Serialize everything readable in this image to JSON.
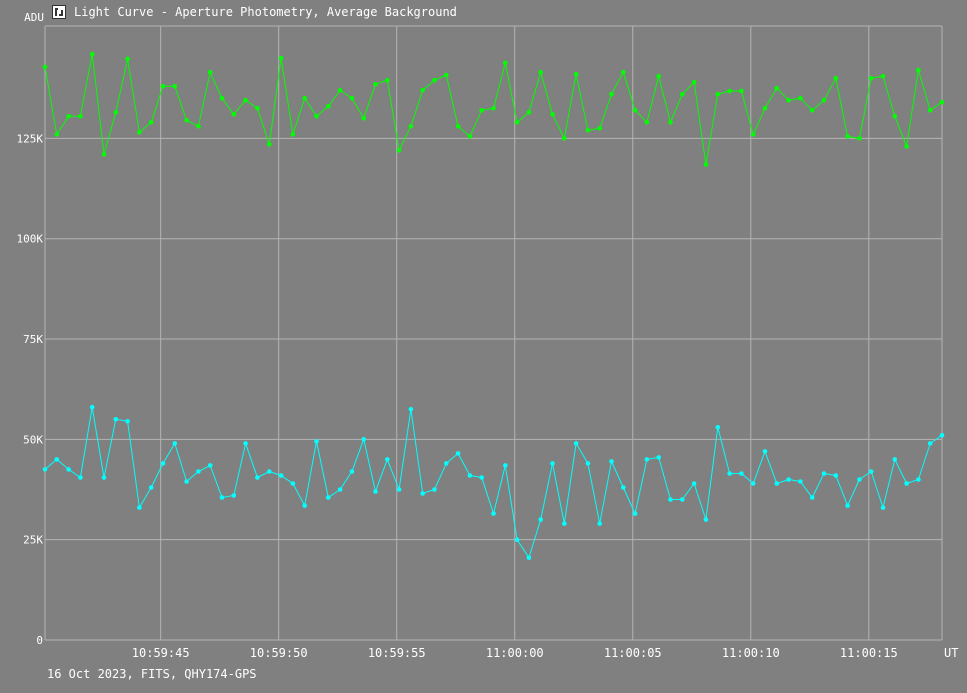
{
  "window": {
    "title": "Light Curve - Aperture Photometry, Average Background",
    "icon": "light-curve-app-icon"
  },
  "footer": {
    "text": "16 Oct 2023, FITS, QHY174-GPS"
  },
  "colors": {
    "background": "#808080",
    "grid": "#b4b4b4",
    "text": "#ffffff",
    "series_green": "#00ff00",
    "series_cyan": "#00ffff"
  },
  "chart_data": {
    "type": "line",
    "title": "",
    "ylabel": "ADU",
    "xlabel": "UT",
    "ylim": [
      0,
      153000
    ],
    "xlim": [
      -3.9,
      34.1
    ],
    "y_ticks": [
      0,
      25000,
      50000,
      75000,
      100000,
      125000
    ],
    "y_tick_labels": [
      "0",
      "25K",
      "50K",
      "75K",
      "100K",
      "125K"
    ],
    "x_ticks": [
      1,
      6,
      11,
      16,
      21,
      26,
      31
    ],
    "x_tick_labels": [
      "10:59:45",
      "10:59:50",
      "10:59:55",
      "11:00:00",
      "11:00:05",
      "11:00:10",
      "11:00:15"
    ],
    "x_unit_note": "seconds after 10:59:44",
    "grid": true,
    "series": [
      {
        "color": "#00ff00",
        "x_start": -3.9,
        "x_step": 0.5,
        "values": [
          142800,
          126000,
          130500,
          130500,
          146000,
          121000,
          131500,
          144800,
          126500,
          129000,
          138000,
          138000,
          129500,
          128000,
          141500,
          135000,
          131000,
          134500,
          132500,
          123500,
          145000,
          126000,
          135000,
          130500,
          133000,
          137000,
          135000,
          130000,
          138500,
          139500,
          122000,
          128000,
          137000,
          139500,
          140800,
          128000,
          125500,
          132000,
          132500,
          143800,
          129000,
          131500,
          141500,
          131000,
          125000,
          141000,
          127000,
          127500,
          136000,
          141500,
          132000,
          129000,
          140500,
          129000,
          136000,
          139000,
          118500,
          136000,
          136800,
          136800,
          126000,
          132500,
          137500,
          134500,
          135000,
          132000,
          134500,
          140000,
          125500,
          125000,
          140000,
          140500,
          130500,
          123000,
          142000,
          132000,
          134000
        ]
      },
      {
        "color": "#00ffff",
        "x_start": -3.9,
        "x_step": 0.5,
        "values": [
          42500,
          45000,
          42500,
          40500,
          58000,
          40500,
          55000,
          54500,
          33000,
          38000,
          44000,
          49000,
          39500,
          42000,
          43500,
          35500,
          36000,
          49000,
          40500,
          42000,
          41000,
          39000,
          33500,
          49500,
          35500,
          37500,
          42000,
          50000,
          37000,
          45000,
          37500,
          57500,
          36500,
          37500,
          44000,
          46500,
          41000,
          40500,
          31500,
          43500,
          25000,
          20500,
          30000,
          44000,
          29000,
          49000,
          44000,
          29000,
          44500,
          38000,
          31500,
          45000,
          45500,
          35000,
          35000,
          39000,
          30000,
          53000,
          41500,
          41500,
          39000,
          47000,
          39000,
          40000,
          39500,
          35500,
          41500,
          41000,
          33500,
          40000,
          42000,
          33000,
          45000,
          39000,
          40000,
          49000,
          51000
        ]
      }
    ]
  }
}
